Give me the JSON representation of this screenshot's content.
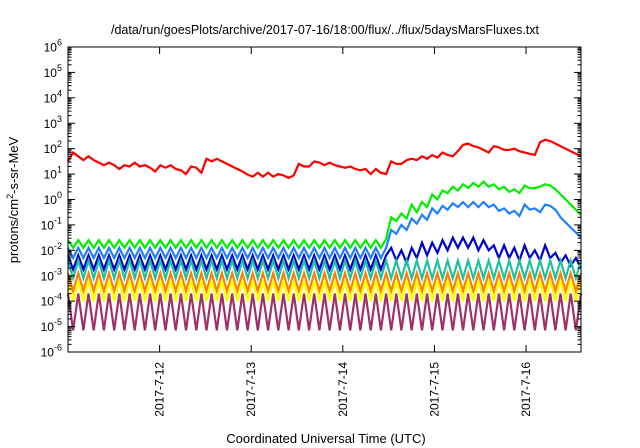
{
  "chart_data": {
    "type": "line",
    "title": "/data/run/goesPlots/archive/2017-07-16/18:00/flux/../flux/5daysMarsFluxes.txt",
    "xlabel": "Coordinated Universal Time (UTC)",
    "ylabel_parts": [
      "protons/cm",
      "2",
      "-s-sr-MeV"
    ],
    "y_scale": "log",
    "ylim": [
      1e-06,
      1000000.0
    ],
    "xlim": [
      0,
      5.6
    ],
    "grid": false,
    "y_ticks": [
      {
        "exp": -6,
        "base": "10",
        "power": "-6"
      },
      {
        "exp": -5,
        "base": "10",
        "power": "-5"
      },
      {
        "exp": -4,
        "base": "10",
        "power": "-4"
      },
      {
        "exp": -3,
        "base": "10",
        "power": "-3"
      },
      {
        "exp": -2,
        "base": "10",
        "power": "-2"
      },
      {
        "exp": -1,
        "base": "10",
        "power": "-1"
      },
      {
        "exp": 0,
        "base": "10",
        "power": "0"
      },
      {
        "exp": 1,
        "base": "10",
        "power": "1"
      },
      {
        "exp": 2,
        "base": "10",
        "power": "2"
      },
      {
        "exp": 3,
        "base": "10",
        "power": "3"
      },
      {
        "exp": 4,
        "base": "10",
        "power": "4"
      },
      {
        "exp": 5,
        "base": "10",
        "power": "5"
      },
      {
        "exp": 6,
        "base": "10",
        "power": "6"
      }
    ],
    "x_ticks": [
      {
        "x": 1.0,
        "label": "2017-7-12"
      },
      {
        "x": 2.0,
        "label": "2017-7-13"
      },
      {
        "x": 3.0,
        "label": "2017-7-14"
      },
      {
        "x": 4.0,
        "label": "2017-7-15"
      },
      {
        "x": 5.0,
        "label": "2017-7-16"
      }
    ],
    "series": [
      {
        "color": "#ff0000",
        "log_values": [
          1.5,
          1.85,
          1.7,
          1.55,
          1.7,
          1.55,
          1.45,
          1.35,
          1.45,
          1.35,
          1.2,
          1.35,
          1.3,
          1.45,
          1.3,
          1.35,
          1.25,
          1.1,
          1.35,
          1.25,
          1.35,
          1.2,
          1.15,
          1.0,
          1.3,
          1.25,
          1.05,
          1.6,
          1.5,
          1.6,
          1.5,
          1.4,
          1.3,
          1.2,
          1.1,
          0.98,
          0.9,
          1.05,
          0.9,
          1.05,
          0.9,
          1.0,
          0.95,
          0.85,
          0.95,
          1.4,
          1.3,
          1.3,
          1.5,
          1.45,
          1.35,
          1.45,
          1.35,
          1.3,
          1.25,
          1.3,
          1.2,
          1.15,
          1.2,
          1.0,
          1.2,
          1.05,
          1.0,
          1.5,
          1.4,
          1.4,
          1.55,
          1.6,
          1.55,
          1.7,
          1.6,
          1.75,
          1.65,
          1.85,
          1.75,
          1.7,
          1.9,
          2.15,
          2.2,
          2.1,
          2.05,
          1.95,
          1.85,
          2.1,
          2.05,
          1.95,
          1.95,
          2.0,
          1.9,
          1.85,
          1.8,
          1.75,
          2.25,
          2.35,
          2.3,
          2.2,
          2.1,
          2.0,
          1.9,
          1.8,
          1.7
        ]
      },
      {
        "color": "#00ee00",
        "log_values": [
          -1.6,
          -1.9,
          -1.6,
          -1.9,
          -1.6,
          -1.9,
          -1.6,
          -1.9,
          -1.6,
          -1.9,
          -1.6,
          -1.9,
          -1.6,
          -1.9,
          -1.6,
          -1.9,
          -1.6,
          -1.9,
          -1.6,
          -1.9,
          -1.6,
          -1.9,
          -1.6,
          -1.9,
          -1.6,
          -1.9,
          -1.6,
          -1.9,
          -1.6,
          -1.9,
          -1.6,
          -1.9,
          -1.6,
          -1.9,
          -1.6,
          -1.9,
          -1.6,
          -1.9,
          -1.6,
          -1.9,
          -1.6,
          -1.9,
          -1.6,
          -1.9,
          -1.6,
          -1.9,
          -1.6,
          -1.9,
          -1.6,
          -1.9,
          -1.6,
          -1.9,
          -1.6,
          -1.9,
          -1.6,
          -1.9,
          -1.6,
          -1.9,
          -1.6,
          -1.9,
          -1.6,
          -1.9,
          -1.55,
          -0.7,
          -0.85,
          -0.55,
          -0.75,
          -0.2,
          -0.5,
          -0.1,
          -0.3,
          0.2,
          0.0,
          0.35,
          0.25,
          0.5,
          0.35,
          0.6,
          0.45,
          0.65,
          0.5,
          0.7,
          0.5,
          0.6,
          0.4,
          0.5,
          0.3,
          0.4,
          0.25,
          0.55,
          0.45,
          0.45,
          0.5,
          0.6,
          0.55,
          0.4,
          0.2,
          0.0,
          -0.2,
          -0.4,
          -0.6
        ]
      },
      {
        "color": "#1f7fff",
        "log_values": [
          -1.9,
          -2.3,
          -1.9,
          -2.3,
          -1.9,
          -2.3,
          -1.9,
          -2.3,
          -1.9,
          -2.3,
          -1.9,
          -2.3,
          -1.9,
          -2.3,
          -1.9,
          -2.3,
          -1.9,
          -2.3,
          -1.9,
          -2.3,
          -1.9,
          -2.3,
          -1.9,
          -2.3,
          -1.9,
          -2.3,
          -1.9,
          -2.3,
          -1.9,
          -2.3,
          -1.9,
          -2.3,
          -1.9,
          -2.3,
          -1.9,
          -2.3,
          -1.9,
          -2.3,
          -1.9,
          -2.3,
          -1.9,
          -2.3,
          -1.9,
          -2.3,
          -1.9,
          -2.3,
          -1.9,
          -2.3,
          -1.9,
          -2.3,
          -1.9,
          -2.3,
          -1.9,
          -2.3,
          -1.9,
          -2.3,
          -1.9,
          -2.3,
          -1.9,
          -2.3,
          -1.9,
          -2.3,
          -1.9,
          -1.2,
          -1.35,
          -1.0,
          -1.2,
          -0.75,
          -0.95,
          -0.6,
          -0.8,
          -0.35,
          -0.55,
          -0.25,
          -0.4,
          -0.15,
          -0.3,
          -0.1,
          -0.3,
          -0.1,
          -0.3,
          -0.1,
          -0.3,
          -0.2,
          -0.45,
          -0.35,
          -0.55,
          -0.45,
          -0.65,
          -0.2,
          -0.4,
          -0.35,
          -0.5,
          -0.2,
          -0.25,
          -0.4,
          -0.7,
          -0.9,
          -1.1,
          -1.3,
          -1.5
        ]
      },
      {
        "color": "#0000cc",
        "log_values": [
          -2.2,
          -2.75,
          -2.2,
          -2.75,
          -2.2,
          -2.75,
          -2.2,
          -2.75,
          -2.2,
          -2.75,
          -2.2,
          -2.75,
          -2.2,
          -2.75,
          -2.2,
          -2.75,
          -2.2,
          -2.75,
          -2.2,
          -2.75,
          -2.2,
          -2.75,
          -2.2,
          -2.75,
          -2.2,
          -2.75,
          -2.2,
          -2.75,
          -2.2,
          -2.75,
          -2.2,
          -2.75,
          -2.2,
          -2.75,
          -2.2,
          -2.75,
          -2.2,
          -2.75,
          -2.2,
          -2.75,
          -2.2,
          -2.75,
          -2.2,
          -2.75,
          -2.2,
          -2.75,
          -2.2,
          -2.75,
          -2.2,
          -2.75,
          -2.2,
          -2.75,
          -2.2,
          -2.75,
          -2.2,
          -2.75,
          -2.2,
          -2.75,
          -2.2,
          -2.75,
          -2.2,
          -2.75,
          -2.2,
          -1.9,
          -2.4,
          -2.0,
          -2.5,
          -1.9,
          -2.3,
          -1.7,
          -2.2,
          -1.7,
          -2.1,
          -1.6,
          -2.0,
          -1.5,
          -1.9,
          -1.5,
          -1.9,
          -1.5,
          -2.0,
          -1.6,
          -2.0,
          -1.8,
          -2.3,
          -1.8,
          -2.3,
          -1.9,
          -2.4,
          -1.8,
          -2.3,
          -2.0,
          -2.4,
          -1.8,
          -2.3,
          -2.1,
          -2.5,
          -2.2,
          -2.6,
          -2.3,
          -2.7
        ]
      },
      {
        "color": "#20c0a0",
        "log_values": [
          -2.4,
          -3.1,
          -2.4,
          -3.1,
          -2.4,
          -3.1,
          -2.4,
          -3.1,
          -2.4,
          -3.1,
          -2.4,
          -3.1,
          -2.4,
          -3.1,
          -2.4,
          -3.1,
          -2.4,
          -3.1,
          -2.4,
          -3.1,
          -2.4,
          -3.1,
          -2.4,
          -3.1,
          -2.4,
          -3.1,
          -2.4,
          -3.1,
          -2.4,
          -3.1,
          -2.4,
          -3.1,
          -2.4,
          -3.1,
          -2.4,
          -3.1,
          -2.4,
          -3.1,
          -2.4,
          -3.1,
          -2.4,
          -3.1,
          -2.4,
          -3.1,
          -2.4,
          -3.1,
          -2.4,
          -3.1,
          -2.4,
          -3.1,
          -2.4,
          -3.1,
          -2.4,
          -3.1,
          -2.4,
          -3.1,
          -2.4,
          -3.1,
          -2.4,
          -3.1,
          -2.4,
          -3.1,
          -2.4,
          -3.1,
          -2.4,
          -3.1,
          -2.4,
          -3.1,
          -2.4,
          -3.1,
          -2.4,
          -3.1,
          -2.4,
          -3.1,
          -2.4,
          -3.1,
          -2.4,
          -3.1,
          -2.4,
          -3.1,
          -2.4,
          -3.1,
          -2.4,
          -3.1,
          -2.4,
          -3.1,
          -2.4,
          -3.1,
          -2.4,
          -3.1,
          -2.4,
          -3.1,
          -2.4,
          -3.1,
          -2.4,
          -3.1,
          -2.4,
          -3.1,
          -2.4,
          -3.1,
          -2.4
        ]
      },
      {
        "color": "#ff7f00",
        "log_values": [
          -2.9,
          -3.6,
          -2.9,
          -3.6,
          -2.9,
          -3.6,
          -2.9,
          -3.6,
          -2.9,
          -3.6,
          -2.9,
          -3.6,
          -2.9,
          -3.6,
          -2.9,
          -3.6,
          -2.9,
          -3.6,
          -2.9,
          -3.6,
          -2.9,
          -3.6,
          -2.9,
          -3.6,
          -2.9,
          -3.6,
          -2.9,
          -3.6,
          -2.9,
          -3.6,
          -2.9,
          -3.6,
          -2.9,
          -3.6,
          -2.9,
          -3.6,
          -2.9,
          -3.6,
          -2.9,
          -3.6,
          -2.9,
          -3.6,
          -2.9,
          -3.6,
          -2.9,
          -3.6,
          -2.9,
          -3.6,
          -2.9,
          -3.6,
          -2.9,
          -3.6,
          -2.9,
          -3.6,
          -2.9,
          -3.6,
          -2.9,
          -3.6,
          -2.9,
          -3.6,
          -2.9,
          -3.6,
          -2.9,
          -3.6,
          -2.9,
          -3.6,
          -2.9,
          -3.6,
          -2.9,
          -3.6,
          -2.9,
          -3.6,
          -2.9,
          -3.6,
          -2.9,
          -3.6,
          -2.9,
          -3.6,
          -2.9,
          -3.6,
          -2.9,
          -3.6,
          -2.9,
          -3.6,
          -2.9,
          -3.6,
          -2.9,
          -3.6,
          -2.9,
          -3.6,
          -2.9,
          -3.6,
          -2.9,
          -3.6,
          -2.9,
          -3.6,
          -2.9,
          -3.6,
          -2.9,
          -3.6,
          -2.9
        ]
      },
      {
        "color": "#ffff00",
        "log_values": [
          -3.2,
          -4.0,
          -3.2,
          -4.0,
          -3.2,
          -4.0,
          -3.2,
          -4.0,
          -3.2,
          -4.0,
          -3.2,
          -4.0,
          -3.2,
          -4.0,
          -3.2,
          -4.0,
          -3.2,
          -4.0,
          -3.2,
          -4.0,
          -3.2,
          -4.0,
          -3.2,
          -4.0,
          -3.2,
          -4.0,
          -3.2,
          -4.0,
          -3.2,
          -4.0,
          -3.2,
          -4.0,
          -3.2,
          -4.0,
          -3.2,
          -4.0,
          -3.2,
          -4.0,
          -3.2,
          -4.0,
          -3.2,
          -4.0,
          -3.2,
          -4.0,
          -3.2,
          -4.0,
          -3.2,
          -4.0,
          -3.2,
          -4.0,
          -3.2,
          -4.0,
          -3.2,
          -4.0,
          -3.2,
          -4.0,
          -3.2,
          -4.0,
          -3.2,
          -4.0,
          -3.2,
          -4.0,
          -3.2,
          -4.0,
          -3.2,
          -4.0,
          -3.2,
          -4.0,
          -3.2,
          -4.0,
          -3.2,
          -4.0,
          -3.2,
          -4.0,
          -3.2,
          -4.0,
          -3.2,
          -4.0,
          -3.2,
          -4.0,
          -3.2,
          -4.0,
          -3.2,
          -4.0,
          -3.2,
          -4.0,
          -3.2,
          -4.0,
          -3.2,
          -4.0,
          -3.2,
          -4.0,
          -3.2,
          -4.0,
          -3.2,
          -4.0,
          -3.2,
          -4.0,
          -3.2,
          -4.0,
          -3.2
        ]
      },
      {
        "color": "#a0306a",
        "log_values": [
          -3.7,
          -5.15,
          -3.7,
          -5.15,
          -3.7,
          -5.15,
          -3.7,
          -5.15,
          -3.7,
          -5.15,
          -3.7,
          -5.15,
          -3.7,
          -5.15,
          -3.7,
          -5.15,
          -3.7,
          -5.15,
          -3.7,
          -5.15,
          -3.7,
          -5.15,
          -3.7,
          -5.15,
          -3.7,
          -5.15,
          -3.7,
          -5.15,
          -3.7,
          -5.15,
          -3.7,
          -5.15,
          -3.7,
          -5.15,
          -3.7,
          -5.15,
          -3.7,
          -5.15,
          -3.7,
          -5.15,
          -3.7,
          -5.15,
          -3.7,
          -5.15,
          -3.7,
          -5.15,
          -3.7,
          -5.15,
          -3.7,
          -5.15,
          -3.7,
          -5.15,
          -3.7,
          -5.15,
          -3.7,
          -5.15,
          -3.7,
          -5.15,
          -3.7,
          -5.15,
          -3.7,
          -5.15,
          -3.7,
          -5.15,
          -3.7,
          -5.15,
          -3.7,
          -5.15,
          -3.7,
          -5.15,
          -3.7,
          -5.15,
          -3.7,
          -5.15,
          -3.7,
          -5.15,
          -3.7,
          -5.15,
          -3.7,
          -5.15,
          -3.7,
          -5.15,
          -3.7,
          -5.15,
          -3.7,
          -5.15,
          -3.7,
          -5.15,
          -3.7,
          -5.15,
          -3.7,
          -5.15,
          -3.7,
          -5.15,
          -3.7,
          -5.15,
          -3.7,
          -5.15,
          -3.7,
          -5.15,
          -3.7
        ]
      }
    ]
  }
}
